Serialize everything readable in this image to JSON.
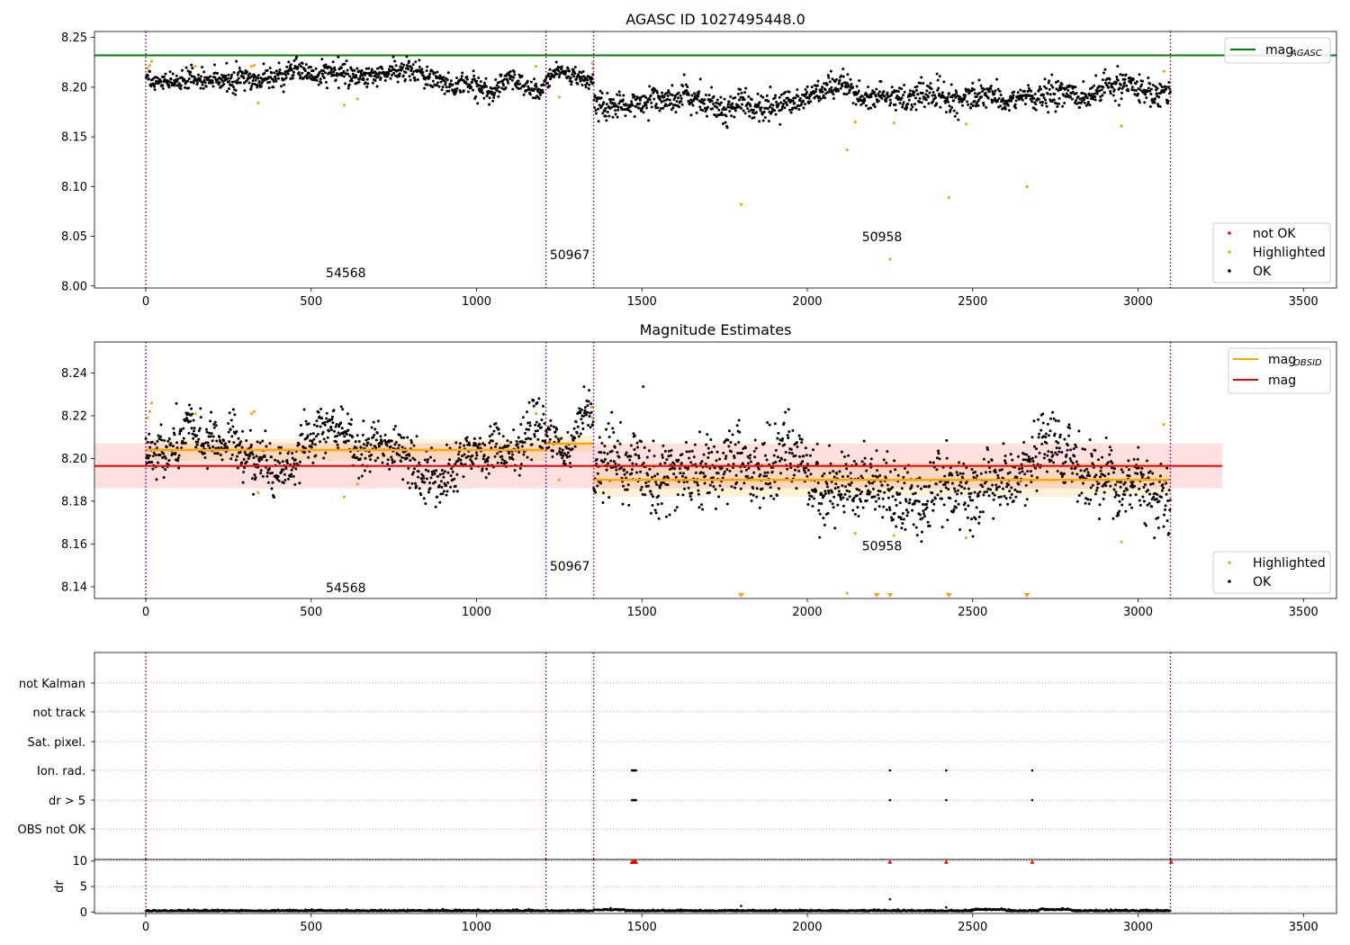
{
  "chart_data": [
    {
      "type": "scatter",
      "title": "AGASC ID 1027495448.0",
      "xlim": [
        -155,
        3600
      ],
      "ylim": [
        7.998,
        8.256
      ],
      "x_ticks": [
        0,
        500,
        1000,
        1500,
        2000,
        2500,
        3000,
        3500
      ],
      "y_ticks": [
        8.0,
        8.05,
        8.1,
        8.15,
        8.2,
        8.25
      ],
      "y_tick_labels": [
        "8.00",
        "8.05",
        "8.10",
        "8.15",
        "8.20",
        "8.25"
      ],
      "hlines": [
        {
          "name": "mag_AGASC",
          "y": 8.232,
          "color": "#008000"
        }
      ],
      "legend_lines": [
        {
          "label": "mag",
          "sub": "AGASC",
          "color": "#008000"
        }
      ],
      "legend_markers": [
        {
          "label": "not OK",
          "color": "#ff0000"
        },
        {
          "label": "Highlighted",
          "color": "#ffa500"
        },
        {
          "label": "OK",
          "color": "#000000"
        }
      ],
      "obsid_boundaries": [
        0,
        1210,
        1354,
        3098
      ],
      "obsid_labels": [
        {
          "text": "54568",
          "x": 605,
          "y": 8.009
        },
        {
          "text": "50967",
          "x": 1282,
          "y": 8.027
        },
        {
          "text": "50958",
          "x": 2226,
          "y": 8.045
        }
      ],
      "ok_segments": [
        {
          "x0": 0,
          "x1": 1210,
          "mean": 8.204,
          "std": 0.005,
          "start": 8.211,
          "end": 8.204
        },
        {
          "x0": 1210,
          "x1": 1354,
          "mean": 8.208,
          "std": 0.004
        },
        {
          "x0": 1354,
          "x1": 3098,
          "mean": 8.189,
          "std": 0.0065,
          "start": 8.181,
          "end": 8.198
        }
      ],
      "highlighted": [
        [
          5,
          8.219
        ],
        [
          12,
          8.222
        ],
        [
          18,
          8.226
        ],
        [
          150,
          8.221
        ],
        [
          320,
          8.221
        ],
        [
          328,
          8.222
        ],
        [
          340,
          8.184
        ],
        [
          600,
          8.182
        ],
        [
          640,
          8.188
        ],
        [
          1180,
          8.221
        ],
        [
          1250,
          8.19
        ],
        [
          1350,
          8.224
        ],
        [
          1352,
          8.219
        ],
        [
          1800,
          8.082
        ],
        [
          2120,
          8.137
        ],
        [
          2145,
          8.165
        ],
        [
          2210,
          8.053
        ],
        [
          2250,
          8.027
        ],
        [
          2262,
          8.164
        ],
        [
          2428,
          8.089
        ],
        [
          2480,
          8.163
        ],
        [
          2664,
          8.1
        ],
        [
          2950,
          8.161
        ],
        [
          3078,
          8.216
        ]
      ]
    },
    {
      "type": "scatter",
      "title": "Magnitude Estimates",
      "xlim": [
        -155,
        3600
      ],
      "ylim": [
        8.1345,
        8.2545
      ],
      "x_ticks": [
        0,
        500,
        1000,
        1500,
        2000,
        2500,
        3000,
        3500
      ],
      "y_ticks": [
        8.14,
        8.16,
        8.18,
        8.2,
        8.22,
        8.24
      ],
      "y_tick_labels": [
        "8.14",
        "8.16",
        "8.18",
        "8.20",
        "8.22",
        "8.24"
      ],
      "mag": {
        "y": 8.1965,
        "band": [
          8.186,
          8.207
        ],
        "x0": -155,
        "x1": 3255,
        "color": "#ff0000"
      },
      "mag_obsid": [
        {
          "x0": 0,
          "x1": 1210,
          "y": 8.204,
          "band": [
            8.199,
            8.209
          ]
        },
        {
          "x0": 1210,
          "x1": 1354,
          "y": 8.207,
          "band": [
            8.203,
            8.211
          ]
        },
        {
          "x0": 1354,
          "x1": 3098,
          "y": 8.19,
          "band": [
            8.182,
            8.198
          ]
        }
      ],
      "legend_lines": [
        {
          "label": "mag",
          "sub": "OBSID",
          "color": "#ffa500"
        },
        {
          "label": "mag",
          "sub": "",
          "color": "#ff0000"
        }
      ],
      "legend_markers": [
        {
          "label": "Highlighted",
          "color": "#ffa500"
        },
        {
          "label": "OK",
          "color": "#000000"
        }
      ],
      "obsid_boundaries": [
        0,
        1210,
        1354,
        3098
      ],
      "obsid_labels": [
        {
          "text": "54568",
          "x": 605,
          "y": 8.1375
        },
        {
          "text": "50967",
          "x": 1282,
          "y": 8.1475
        },
        {
          "text": "50958",
          "x": 2226,
          "y": 8.157
        }
      ],
      "ok_segments": [
        {
          "x0": 0,
          "x1": 1210,
          "mean": 8.204,
          "std": 0.0055
        },
        {
          "x0": 1210,
          "x1": 1354,
          "mean": 8.209,
          "std": 0.0045
        },
        {
          "x0": 1354,
          "x1": 3098,
          "mean": 8.19,
          "std": 0.008
        }
      ],
      "highlighted": [
        [
          5,
          8.219
        ],
        [
          12,
          8.222
        ],
        [
          18,
          8.226
        ],
        [
          150,
          8.221
        ],
        [
          320,
          8.221
        ],
        [
          328,
          8.222
        ],
        [
          340,
          8.184
        ],
        [
          600,
          8.182
        ],
        [
          640,
          8.188
        ],
        [
          1180,
          8.221
        ],
        [
          1250,
          8.19
        ],
        [
          1350,
          8.224
        ],
        [
          1352,
          8.219
        ],
        [
          2120,
          8.137
        ],
        [
          2145,
          8.165
        ],
        [
          2262,
          8.164
        ],
        [
          2480,
          8.163
        ],
        [
          2950,
          8.161
        ],
        [
          3078,
          8.216
        ]
      ],
      "below_axis_markers": [
        1800,
        2210,
        2250,
        2428,
        2664
      ]
    },
    {
      "type": "scatter",
      "title": "",
      "xlim": [
        -155,
        3600
      ],
      "categories": [
        "not Kalman",
        "not track",
        "Sat. pixel.",
        "Ion. rad.",
        "dr > 5",
        "OBS not OK"
      ],
      "flags": {
        "Ion. rad.": [
          1470,
          1473,
          1476,
          1479,
          1482,
          2250,
          2420,
          2680
        ],
        "dr > 5": [
          1470,
          1473,
          1476,
          1479,
          1482,
          2250,
          2420,
          2680
        ]
      },
      "obsid_boundaries": [
        0,
        1210,
        1354,
        3098
      ]
    },
    {
      "type": "scatter",
      "title": "",
      "xlim": [
        -155,
        3600
      ],
      "ylim": [
        -0.3,
        10.3
      ],
      "ylabel": "dr",
      "y_ticks": [
        0,
        5,
        10
      ],
      "y_tick_labels": [
        "0",
        "5",
        "10"
      ],
      "x_ticks": [
        0,
        500,
        1000,
        1500,
        2000,
        2500,
        3000,
        3500
      ],
      "dr_clipped": [
        1470,
        1473,
        1476,
        1479,
        1482,
        2250,
        2420,
        2680,
        3100
      ],
      "dr_outliers": [
        [
          1800,
          1.2
        ],
        [
          2250,
          2.5
        ],
        [
          2420,
          0.9
        ]
      ],
      "obsid_boundaries": [
        0,
        1210,
        1354,
        3098
      ]
    }
  ]
}
